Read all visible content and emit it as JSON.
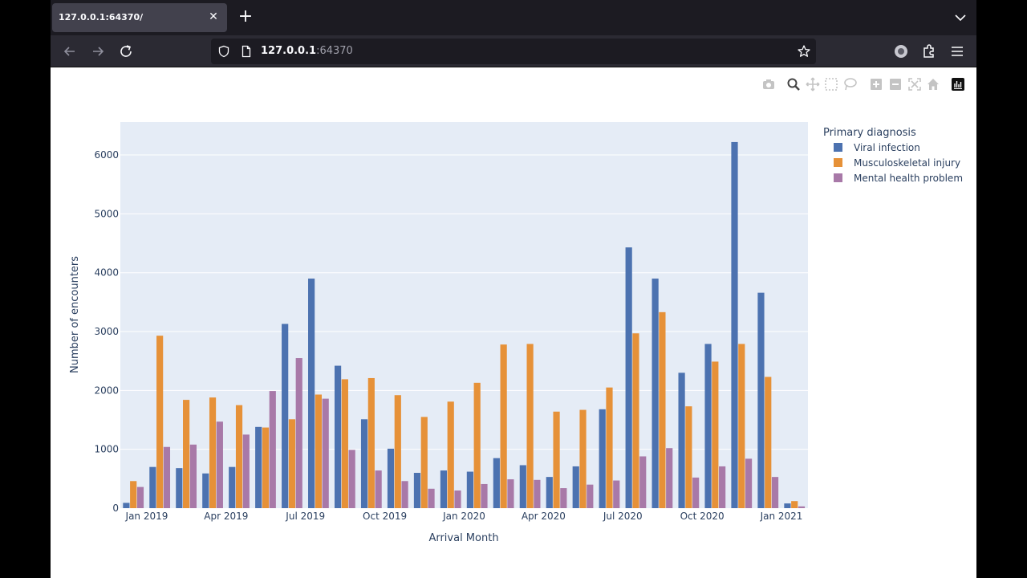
{
  "browser": {
    "tab_title": "127.0.0.1:64370/",
    "url_host": "127.0.0.1",
    "url_port": ":64370"
  },
  "colors": {
    "viral": "#4c72b0",
    "msk": "#e69138",
    "mental": "#a879a8",
    "plot_bg": "#e5ecf6"
  },
  "chart_data": {
    "type": "bar",
    "xlabel": "Arrival Month",
    "ylabel": "Number of encounters",
    "legend_title": "Primary diagnosis",
    "legend_position": "top-right",
    "ylim": [
      0,
      6560
    ],
    "yticks": [
      0,
      1000,
      2000,
      3000,
      4000,
      5000,
      6000
    ],
    "xtick_labels": [
      {
        "label": "Jan 2019",
        "index": 1
      },
      {
        "label": "Apr 2019",
        "index": 4
      },
      {
        "label": "Jul 2019",
        "index": 7
      },
      {
        "label": "Oct 2019",
        "index": 10
      },
      {
        "label": "Jan 2020",
        "index": 13
      },
      {
        "label": "Apr 2020",
        "index": 16
      },
      {
        "label": "Jul 2020",
        "index": 19
      },
      {
        "label": "Oct 2020",
        "index": 22
      },
      {
        "label": "Jan 2021",
        "index": 25
      }
    ],
    "categories": [
      "Dec 2018",
      "Jan 2019",
      "Feb 2019",
      "Mar 2019",
      "Apr 2019",
      "May 2019",
      "Jun 2019",
      "Jul 2019",
      "Aug 2019",
      "Sep 2019",
      "Oct 2019",
      "Nov 2019",
      "Dec 2019",
      "Jan 2020",
      "Feb 2020",
      "Mar 2020",
      "Apr 2020",
      "May 2020",
      "Jun 2020",
      "Jul 2020",
      "Aug 2020",
      "Sep 2020",
      "Oct 2020",
      "Nov 2020",
      "Dec 2020",
      "Jan 2021"
    ],
    "series": [
      {
        "name": "Viral infection",
        "values": [
          90,
          700,
          680,
          590,
          700,
          1380,
          3130,
          3900,
          2420,
          1510,
          1010,
          600,
          640,
          620,
          850,
          730,
          530,
          710,
          1680,
          4430,
          3900,
          2300,
          2790,
          6220,
          3660,
          80
        ]
      },
      {
        "name": "Musculoskeletal injury",
        "values": [
          460,
          2930,
          1840,
          1880,
          1750,
          1370,
          1510,
          1930,
          2190,
          2210,
          1920,
          1550,
          1810,
          2130,
          2780,
          2790,
          1640,
          1670,
          2050,
          2970,
          3330,
          1730,
          2490,
          2790,
          2230,
          120
        ]
      },
      {
        "name": "Mental health problem",
        "values": [
          360,
          1040,
          1080,
          1470,
          1250,
          1990,
          2550,
          1860,
          990,
          640,
          460,
          330,
          300,
          410,
          490,
          480,
          340,
          400,
          470,
          880,
          1020,
          520,
          710,
          840,
          530,
          30
        ]
      }
    ]
  }
}
